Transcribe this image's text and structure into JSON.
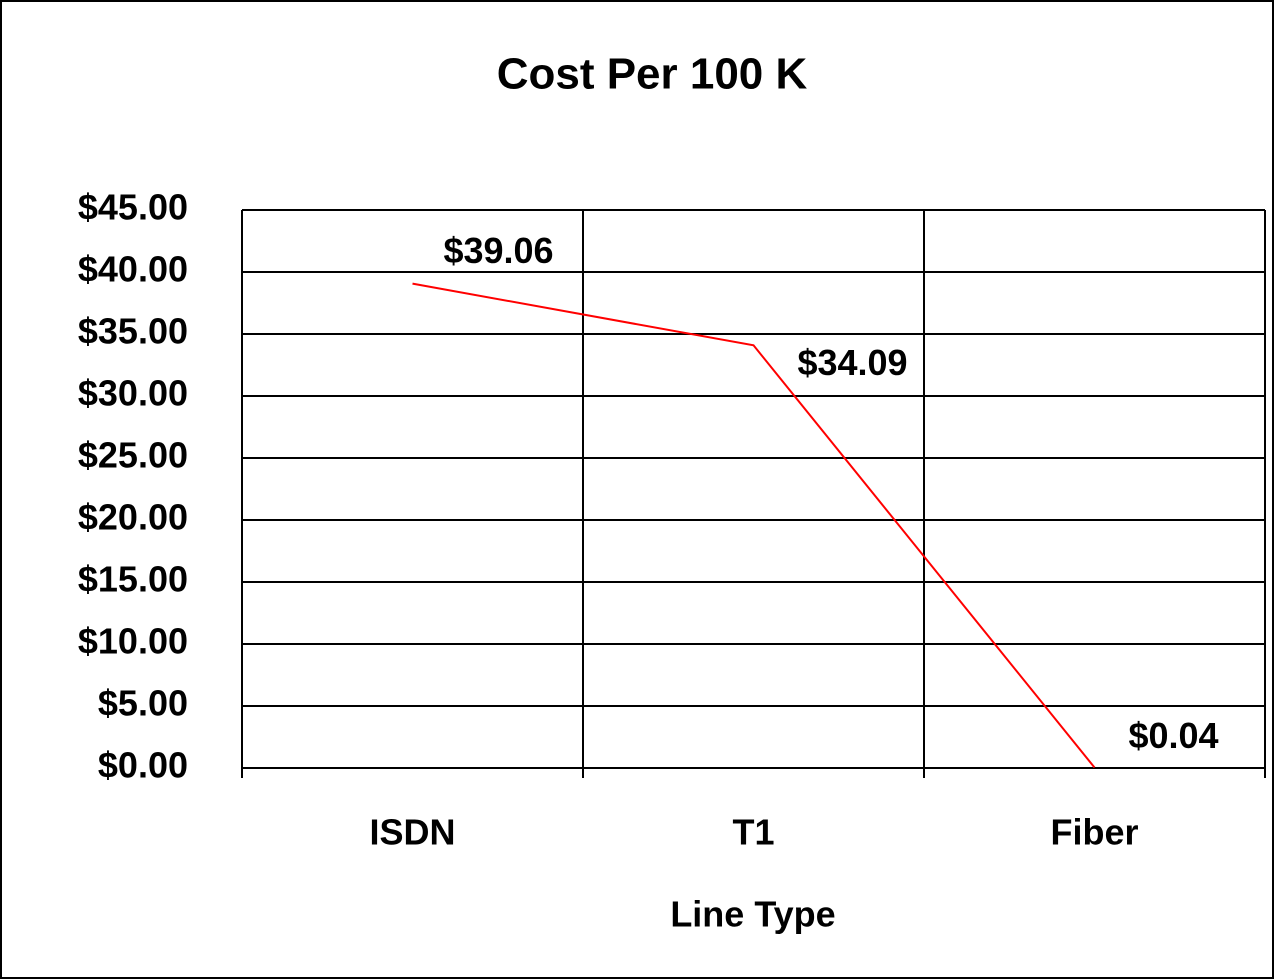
{
  "chart_data": {
    "type": "line",
    "title": "Cost Per 100 K",
    "x_label": "Line Type",
    "categories": [
      "ISDN",
      "T1",
      "Fiber"
    ],
    "series": [
      {
        "name": "Cost Per 100 K",
        "color": "#ff0000",
        "values": [
          39.06,
          34.09,
          0.04
        ],
        "value_labels": [
          "$39.06",
          "$34.09",
          "$0.04"
        ]
      }
    ],
    "ylim": [
      0,
      45
    ],
    "yticks": [
      {
        "value": 0,
        "label": "$0.00"
      },
      {
        "value": 5,
        "label": "$5.00"
      },
      {
        "value": 10,
        "label": "$10.00"
      },
      {
        "value": 15,
        "label": "$15.00"
      },
      {
        "value": 20,
        "label": "$20.00"
      },
      {
        "value": 25,
        "label": "$25.00"
      },
      {
        "value": 30,
        "label": "$30.00"
      },
      {
        "value": 35,
        "label": "$35.00"
      },
      {
        "value": 40,
        "label": "$40.00"
      },
      {
        "value": 45,
        "label": "$45.00"
      }
    ],
    "grid": true
  }
}
